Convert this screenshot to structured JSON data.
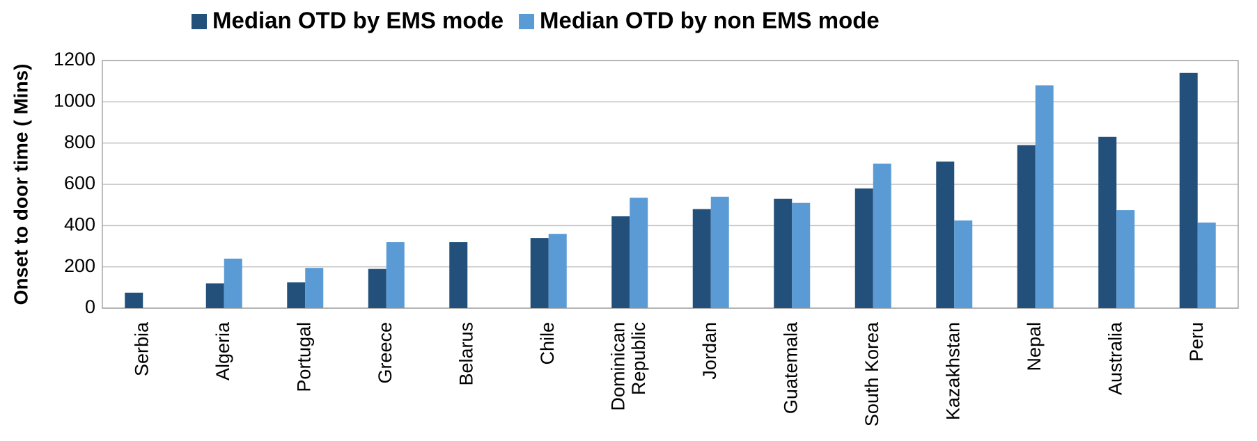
{
  "chart_data": {
    "type": "bar",
    "y_label": "Onset to door time ( Mins)",
    "categories": [
      "Serbia",
      "Algeria",
      "Portugal",
      "Greece",
      "Belarus",
      "Chile",
      "Dominican Republic",
      "Jordan",
      "Guatemala",
      "South Korea",
      "Kazakhstan",
      "Nepal",
      "Australia",
      "Peru"
    ],
    "series": [
      {
        "name": "Median OTD by EMS mode",
        "color": "#23507a",
        "values": [
          75,
          120,
          125,
          190,
          320,
          340,
          445,
          480,
          530,
          580,
          710,
          790,
          830,
          1140
        ]
      },
      {
        "name": "Median OTD by non EMS mode",
        "color": "#5b9bd5",
        "values": [
          null,
          240,
          195,
          320,
          null,
          360,
          535,
          540,
          510,
          700,
          425,
          1080,
          475,
          415
        ]
      }
    ],
    "ylim": [
      0,
      1200
    ],
    "yticks": [
      0,
      200,
      400,
      600,
      800,
      1000,
      1200
    ],
    "grid": true,
    "legend": "top"
  }
}
